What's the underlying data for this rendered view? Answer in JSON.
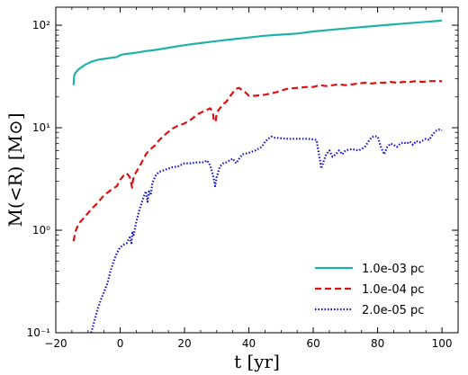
{
  "chart_data": {
    "type": "line",
    "xlabel": "t [yr]",
    "ylabel": "M(<R) [M⊙]",
    "xlim": [
      -20,
      105
    ],
    "ylim": [
      0.1,
      150
    ],
    "yscale": "log",
    "x_ticks": [
      -20,
      0,
      20,
      40,
      60,
      80,
      100
    ],
    "x_tick_labels": [
      "−20",
      "0",
      "20",
      "40",
      "60",
      "80",
      "100"
    ],
    "y_ticks": [
      0.1,
      1,
      10,
      100
    ],
    "y_tick_labels": [
      "10⁻¹",
      "10⁰",
      "10¹",
      "10²"
    ],
    "legend_position": "lower-right",
    "series": [
      {
        "name": "1.0e-03 pc",
        "color": "#20b2aa",
        "dash": "solid",
        "points": [
          [
            -14.5,
            26
          ],
          [
            -14.3,
            32
          ],
          [
            -14,
            34
          ],
          [
            -13,
            37
          ],
          [
            -11,
            41
          ],
          [
            -9,
            44
          ],
          [
            -7,
            46
          ],
          [
            -5,
            47
          ],
          [
            -3,
            48
          ],
          [
            -1,
            49
          ],
          [
            0,
            51
          ],
          [
            1,
            52
          ],
          [
            3,
            53
          ],
          [
            5,
            54
          ],
          [
            8,
            56
          ],
          [
            12,
            58
          ],
          [
            16,
            61
          ],
          [
            20,
            64
          ],
          [
            25,
            67
          ],
          [
            30,
            70
          ],
          [
            35,
            73
          ],
          [
            40,
            76
          ],
          [
            45,
            79
          ],
          [
            50,
            81
          ],
          [
            55,
            83
          ],
          [
            60,
            87
          ],
          [
            65,
            90
          ],
          [
            70,
            93
          ],
          [
            75,
            96
          ],
          [
            80,
            99
          ],
          [
            85,
            102
          ],
          [
            90,
            105
          ],
          [
            95,
            108
          ],
          [
            100,
            111
          ]
        ]
      },
      {
        "name": "1.0e-04 pc",
        "color": "#dd1111",
        "dash": "dashed",
        "points": [
          [
            -14.5,
            0.78
          ],
          [
            -14,
            0.95
          ],
          [
            -13,
            1.15
          ],
          [
            -11,
            1.35
          ],
          [
            -9,
            1.6
          ],
          [
            -7,
            1.85
          ],
          [
            -5,
            2.2
          ],
          [
            -3,
            2.45
          ],
          [
            -1,
            2.7
          ],
          [
            0,
            3.1
          ],
          [
            1,
            3.4
          ],
          [
            2,
            3.6
          ],
          [
            3,
            3.3
          ],
          [
            3.7,
            2.6
          ],
          [
            4,
            3.1
          ],
          [
            4.5,
            3.5
          ],
          [
            5,
            3.7
          ],
          [
            6,
            4.2
          ],
          [
            7,
            4.8
          ],
          [
            8,
            5.5
          ],
          [
            9,
            6
          ],
          [
            10,
            6.4
          ],
          [
            11,
            6.8
          ],
          [
            12,
            7.5
          ],
          [
            14,
            8.6
          ],
          [
            16,
            9.7
          ],
          [
            18,
            10.5
          ],
          [
            20,
            11
          ],
          [
            22,
            12
          ],
          [
            24,
            13.5
          ],
          [
            26,
            14.5
          ],
          [
            28,
            15.5
          ],
          [
            28.8,
            14
          ],
          [
            29.2,
            11.5
          ],
          [
            29.7,
            11.5
          ],
          [
            30,
            14
          ],
          [
            31,
            15.5
          ],
          [
            32,
            17
          ],
          [
            33,
            18
          ],
          [
            34,
            20
          ],
          [
            35,
            22
          ],
          [
            36,
            24
          ],
          [
            37,
            24.5
          ],
          [
            38,
            23
          ],
          [
            39,
            22
          ],
          [
            40,
            20.5
          ],
          [
            42,
            20.5
          ],
          [
            45,
            21
          ],
          [
            48,
            22
          ],
          [
            50,
            23
          ],
          [
            52,
            24
          ],
          [
            55,
            24.5
          ],
          [
            58,
            25
          ],
          [
            60,
            25
          ],
          [
            62,
            26
          ],
          [
            64,
            25.5
          ],
          [
            66,
            26
          ],
          [
            68,
            26.5
          ],
          [
            70,
            26
          ],
          [
            72,
            26.5
          ],
          [
            74,
            27
          ],
          [
            76,
            27.5
          ],
          [
            78,
            27
          ],
          [
            80,
            27.5
          ],
          [
            82,
            27.5
          ],
          [
            84,
            28
          ],
          [
            86,
            27.5
          ],
          [
            88,
            28
          ],
          [
            90,
            28
          ],
          [
            92,
            28.5
          ],
          [
            94,
            28
          ],
          [
            96,
            28.5
          ],
          [
            98,
            28.5
          ],
          [
            100,
            28.5
          ]
        ]
      },
      {
        "name": "2.0e-05 pc",
        "color": "#1111cc",
        "dash": "dotted",
        "points": [
          [
            -9,
            0.1
          ],
          [
            -8,
            0.13
          ],
          [
            -7,
            0.17
          ],
          [
            -6,
            0.21
          ],
          [
            -5,
            0.25
          ],
          [
            -4,
            0.3
          ],
          [
            -3,
            0.4
          ],
          [
            -2,
            0.5
          ],
          [
            -1,
            0.6
          ],
          [
            0,
            0.68
          ],
          [
            1,
            0.72
          ],
          [
            2,
            0.75
          ],
          [
            3,
            0.85
          ],
          [
            3.5,
            0.75
          ],
          [
            3.8,
            0.95
          ],
          [
            4.2,
            0.9
          ],
          [
            5,
            1.2
          ],
          [
            6,
            1.6
          ],
          [
            7,
            2
          ],
          [
            8,
            2.4
          ],
          [
            8.5,
            1.9
          ],
          [
            9,
            2.4
          ],
          [
            9.5,
            2.2
          ],
          [
            10,
            2.9
          ],
          [
            11,
            3.4
          ],
          [
            12,
            3.7
          ],
          [
            14,
            3.9
          ],
          [
            16,
            4.1
          ],
          [
            18,
            4.2
          ],
          [
            20,
            4.5
          ],
          [
            22,
            4.5
          ],
          [
            24,
            4.6
          ],
          [
            26,
            4.6
          ],
          [
            27,
            4.8
          ],
          [
            28,
            4.3
          ],
          [
            29,
            3.3
          ],
          [
            29.5,
            2.7
          ],
          [
            30,
            3.3
          ],
          [
            31,
            4.2
          ],
          [
            32,
            4.5
          ],
          [
            33,
            4.6
          ],
          [
            34,
            4.8
          ],
          [
            35,
            5
          ],
          [
            36,
            4.5
          ],
          [
            37,
            5
          ],
          [
            38,
            5.5
          ],
          [
            40,
            5.7
          ],
          [
            42,
            6
          ],
          [
            44,
            6.5
          ],
          [
            45,
            7.3
          ],
          [
            46,
            7.8
          ],
          [
            47,
            8.2
          ],
          [
            48,
            8
          ],
          [
            50,
            7.9
          ],
          [
            52,
            7.8
          ],
          [
            55,
            7.8
          ],
          [
            58,
            7.8
          ],
          [
            60,
            7.7
          ],
          [
            61,
            7.6
          ],
          [
            62,
            5
          ],
          [
            62.5,
            4
          ],
          [
            63,
            4.5
          ],
          [
            64,
            5.5
          ],
          [
            65,
            6
          ],
          [
            66,
            5.2
          ],
          [
            67,
            5.5
          ],
          [
            68,
            6
          ],
          [
            69,
            5.5
          ],
          [
            70,
            6
          ],
          [
            72,
            6.2
          ],
          [
            74,
            6
          ],
          [
            75,
            6.2
          ],
          [
            76,
            6.5
          ],
          [
            78,
            8
          ],
          [
            79,
            8.3
          ],
          [
            80,
            8.2
          ],
          [
            81,
            6.5
          ],
          [
            82,
            5.5
          ],
          [
            83,
            6.5
          ],
          [
            84,
            7
          ],
          [
            85,
            6.8
          ],
          [
            86,
            6.5
          ],
          [
            87,
            7
          ],
          [
            88,
            7.2
          ],
          [
            89,
            7
          ],
          [
            90,
            7.3
          ],
          [
            91,
            6.8
          ],
          [
            92,
            7.4
          ],
          [
            93,
            7.2
          ],
          [
            94,
            7.5
          ],
          [
            95,
            7.8
          ],
          [
            96,
            7.6
          ],
          [
            97,
            8.5
          ],
          [
            98,
            9.3
          ],
          [
            99,
            9.6
          ],
          [
            100,
            9.4
          ]
        ]
      }
    ]
  }
}
